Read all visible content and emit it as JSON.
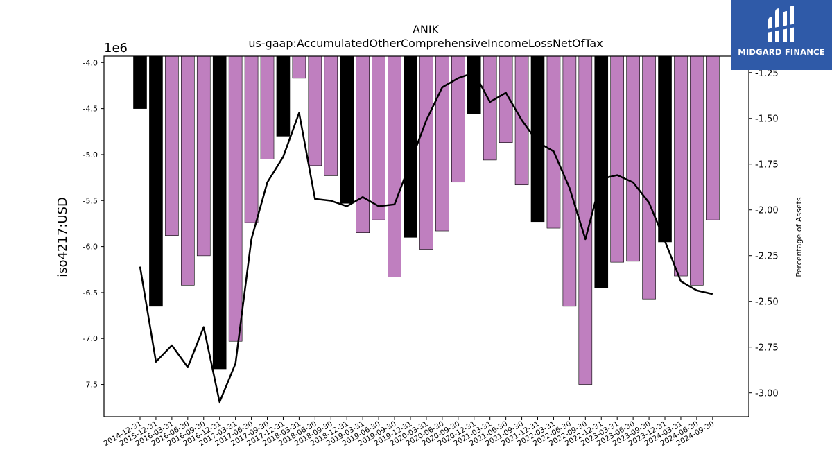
{
  "chart_data": {
    "type": "bar",
    "title": "ANIK",
    "subtitle": "us-gaap:AccumulatedOtherComprehensiveIncomeLossNetOfTax",
    "ylabel": "iso4217:USD",
    "y2label": "Percentage of Assets",
    "offset_label": "1e6",
    "ylim": [
      -7.85,
      -3.93
    ],
    "y2lim": [
      -3.13,
      -1.16
    ],
    "yticks": [
      "-4.0",
      "-4.5",
      "-5.0",
      "-5.5",
      "-6.0",
      "-6.5",
      "-7.0",
      "-7.5"
    ],
    "y2ticks": [
      "-1.25",
      "-1.50",
      "-1.75",
      "-2.00",
      "-2.25",
      "-2.50",
      "-2.75",
      "-3.00"
    ],
    "categories": [
      "2014-12-31",
      "2015-12-31",
      "2016-03-31",
      "2016-06-30",
      "2016-09-30",
      "2016-12-31",
      "2017-03-31",
      "2017-06-30",
      "2017-09-30",
      "2017-12-31",
      "2018-03-31",
      "2018-06-30",
      "2018-09-30",
      "2018-12-31",
      "2019-03-31",
      "2019-06-30",
      "2019-09-30",
      "2019-12-31",
      "2020-03-31",
      "2020-06-30",
      "2020-09-30",
      "2020-12-31",
      "2021-03-31",
      "2021-06-30",
      "2021-09-30",
      "2021-12-31",
      "2022-03-31",
      "2022-06-30",
      "2022-09-30",
      "2022-12-31",
      "2023-03-31",
      "2023-06-30",
      "2023-09-30",
      "2023-12-31",
      "2024-03-31",
      "2024-06-30",
      "2024-09-30"
    ],
    "series": [
      {
        "type": "bar",
        "values": [
          -4.5,
          -6.65,
          -5.88,
          -6.42,
          -6.1,
          -7.33,
          -7.03,
          -5.74,
          -5.05,
          -4.8,
          -4.17,
          -5.12,
          -5.23,
          -5.53,
          -5.85,
          -5.71,
          -6.33,
          -5.9,
          -6.03,
          -5.83,
          -5.3,
          -4.56,
          -5.06,
          -4.87,
          -5.33,
          -5.73,
          -5.8,
          -6.65,
          -7.5,
          -6.45,
          -6.17,
          -6.16,
          -6.57,
          -5.95,
          -6.32,
          -6.42,
          -5.71
        ],
        "highlight": [
          true,
          true,
          false,
          false,
          false,
          true,
          false,
          false,
          false,
          true,
          false,
          false,
          false,
          true,
          false,
          false,
          false,
          true,
          false,
          false,
          false,
          true,
          false,
          false,
          false,
          true,
          false,
          false,
          false,
          true,
          false,
          false,
          false,
          true,
          false,
          false,
          false
        ]
      },
      {
        "type": "line",
        "axis": "right",
        "values": [
          -2.31,
          -2.83,
          -2.74,
          -2.86,
          -2.64,
          -3.05,
          -2.84,
          -2.16,
          -1.85,
          -1.71,
          -1.47,
          -1.94,
          -1.95,
          -1.98,
          -1.93,
          -1.98,
          -1.97,
          -1.74,
          -1.51,
          -1.33,
          -1.28,
          -1.25,
          -1.41,
          -1.36,
          -1.51,
          -1.63,
          -1.68,
          -1.88,
          -2.16,
          -1.83,
          -1.81,
          -1.85,
          -1.96,
          -2.17,
          -2.39,
          -2.44,
          -2.46
        ]
      }
    ],
    "colors": {
      "bar": "#bf7fbf",
      "highlight": "#000000",
      "line": "#000000"
    },
    "grid": false,
    "legend": "none"
  },
  "logo": {
    "text": "MIDGARD FINANCE",
    "icon": "midgard-logo-icon"
  }
}
